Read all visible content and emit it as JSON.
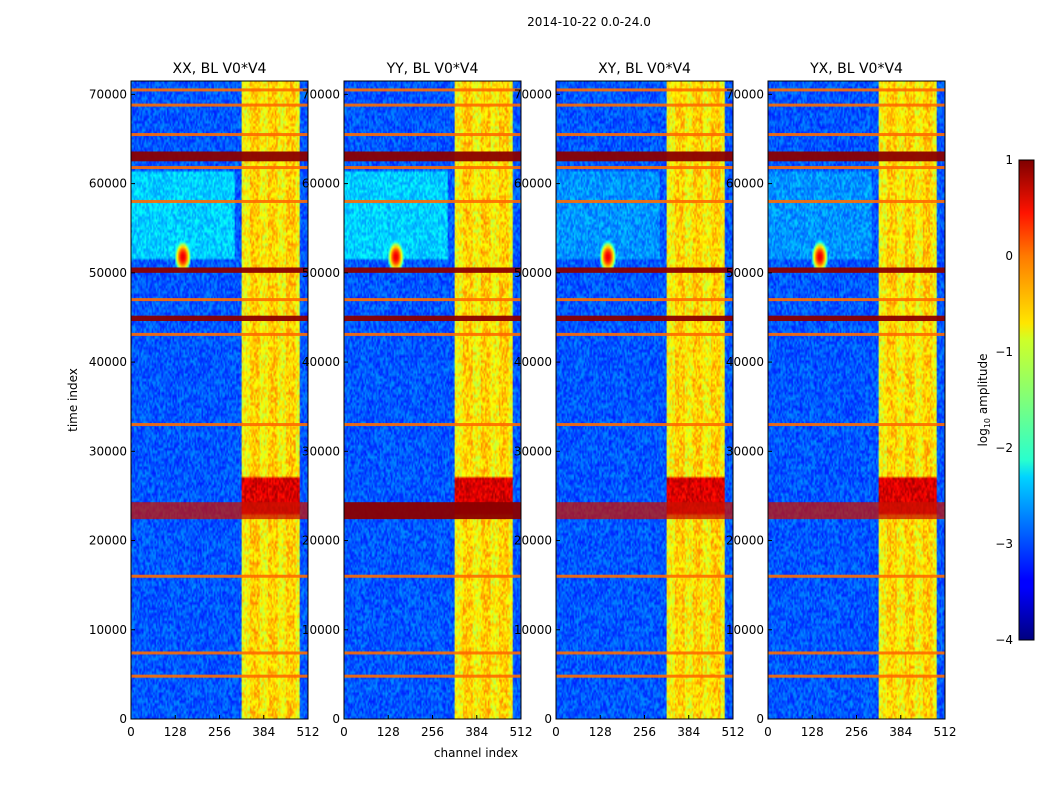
{
  "figure": {
    "suptitle": "2014-10-22 0.0-24.0"
  },
  "chart_data": {
    "type": "heatmap",
    "colormap": "jet",
    "xlabel": "channel index",
    "ylabel": "time index",
    "x_range": [
      0,
      512
    ],
    "y_range": [
      0,
      71500
    ],
    "x_ticks": [
      0,
      128,
      256,
      384,
      512
    ],
    "y_ticks": [
      0,
      10000,
      20000,
      30000,
      40000,
      50000,
      60000,
      70000
    ],
    "panels": [
      {
        "title": "XX, BL V0*V4",
        "pol": "XX"
      },
      {
        "title": "YY, BL V0*V4",
        "pol": "YY"
      },
      {
        "title": "XY, BL V0*V4",
        "pol": "XY"
      },
      {
        "title": "YX, BL V0*V4",
        "pol": "YX"
      }
    ],
    "colorbar": {
      "label": "log10 amplitude",
      "label_main": "log",
      "label_sub": "10",
      "label_tail": " amplitude",
      "range": [
        -4,
        1
      ],
      "ticks": [
        1,
        0,
        -1,
        -2,
        -3,
        -4
      ],
      "tick_labels": [
        "1",
        "0",
        "−1",
        "−2",
        "−3",
        "−4"
      ]
    },
    "rfi_channel_band": [
      320,
      490
    ],
    "strong_rows": [
      {
        "y0": 62500,
        "y1": 63600
      },
      {
        "y0": 50000,
        "y1": 50600
      },
      {
        "y0": 44600,
        "y1": 45200
      },
      {
        "y0": 22400,
        "y1": 24300
      }
    ],
    "orange_rows": [
      4800,
      7400,
      16000,
      33000,
      43100,
      47000,
      58000,
      61800,
      65500,
      68800,
      70500
    ],
    "bright_spot": {
      "channel": 150,
      "time": 51800
    }
  }
}
